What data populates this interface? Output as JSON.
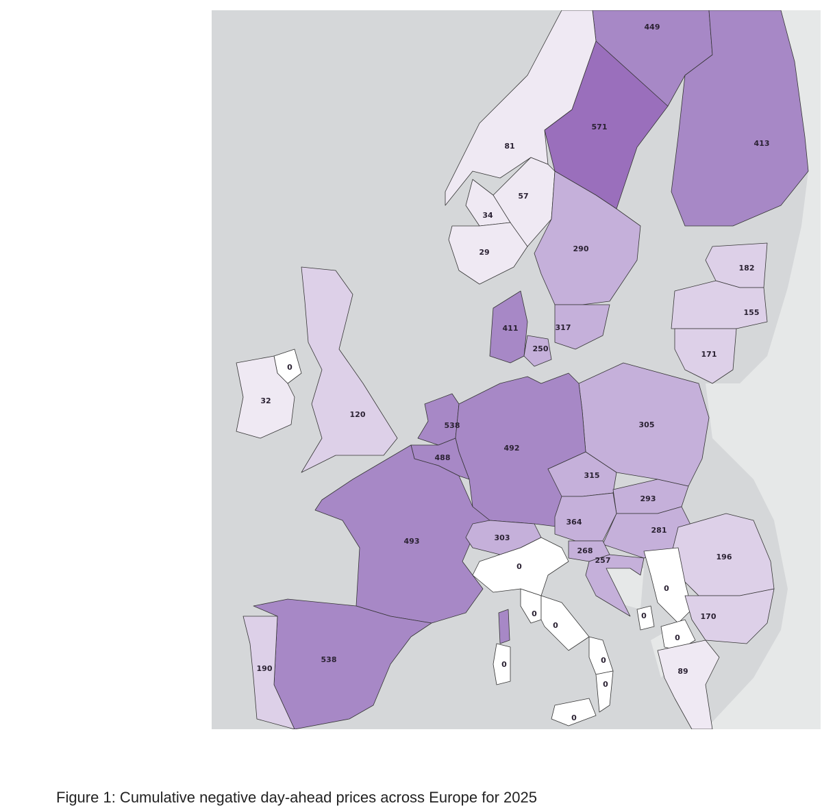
{
  "figure": {
    "caption": "Figure 1: Cumulative negative day-ahead prices across Europe for 2025"
  },
  "map": {
    "type": "choropleth",
    "region": "Europe",
    "colors": {
      "sea": "#d5d7d9",
      "non_data_land": "#e6e8e8",
      "zero": "#ffffff",
      "low": "#efe9f3",
      "light": "#ddd0e8",
      "medium": "#c5b0da",
      "high": "#a788c6",
      "highest": "#9a6fbc"
    },
    "values": [
      449,
      571,
      413,
      81,
      57,
      34,
      29,
      290,
      182,
      155,
      411,
      317,
      250,
      171,
      0,
      32,
      120,
      538,
      305,
      492,
      488,
      315,
      293,
      364,
      281,
      493,
      303,
      268,
      257,
      196,
      0,
      0,
      0,
      0,
      0,
      170,
      0,
      538,
      190,
      0,
      0,
      89,
      0,
      0
    ]
  }
}
